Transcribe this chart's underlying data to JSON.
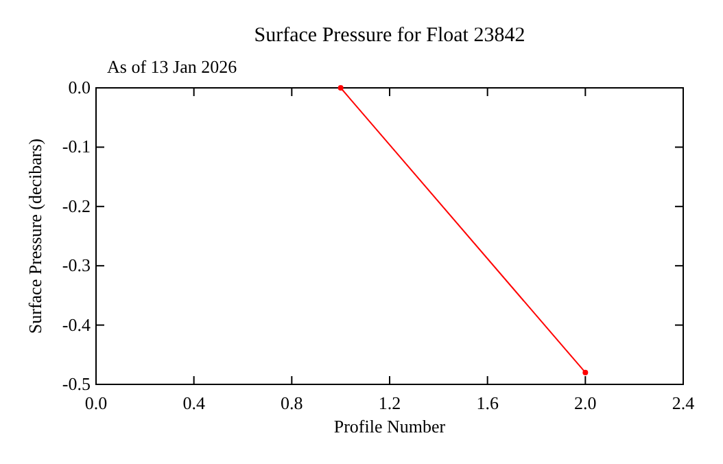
{
  "chart_data": {
    "type": "line",
    "title": "Surface Pressure for Float 23842",
    "subtitle": "As of 13 Jan 2026",
    "xlabel": "Profile Number",
    "ylabel": "Surface Pressure (decibars)",
    "x": [
      1,
      2
    ],
    "series": [
      {
        "color": "#ff0000",
        "values": [
          0.0,
          -0.48
        ]
      }
    ],
    "xlim": [
      0,
      2.4
    ],
    "xticks": [
      {
        "value": 0,
        "label": "0.0"
      },
      0.4,
      0.8,
      1.2,
      1.6,
      {
        "value": 2,
        "label": "2.0"
      },
      2.4
    ],
    "ylim": [
      -0.5,
      0
    ],
    "yticks": [
      -0.5,
      -0.4,
      -0.3,
      -0.2,
      -0.1,
      {
        "value": 0,
        "label": "0.0"
      }
    ],
    "grid": false,
    "marker": "circle",
    "line_style": "solid"
  }
}
